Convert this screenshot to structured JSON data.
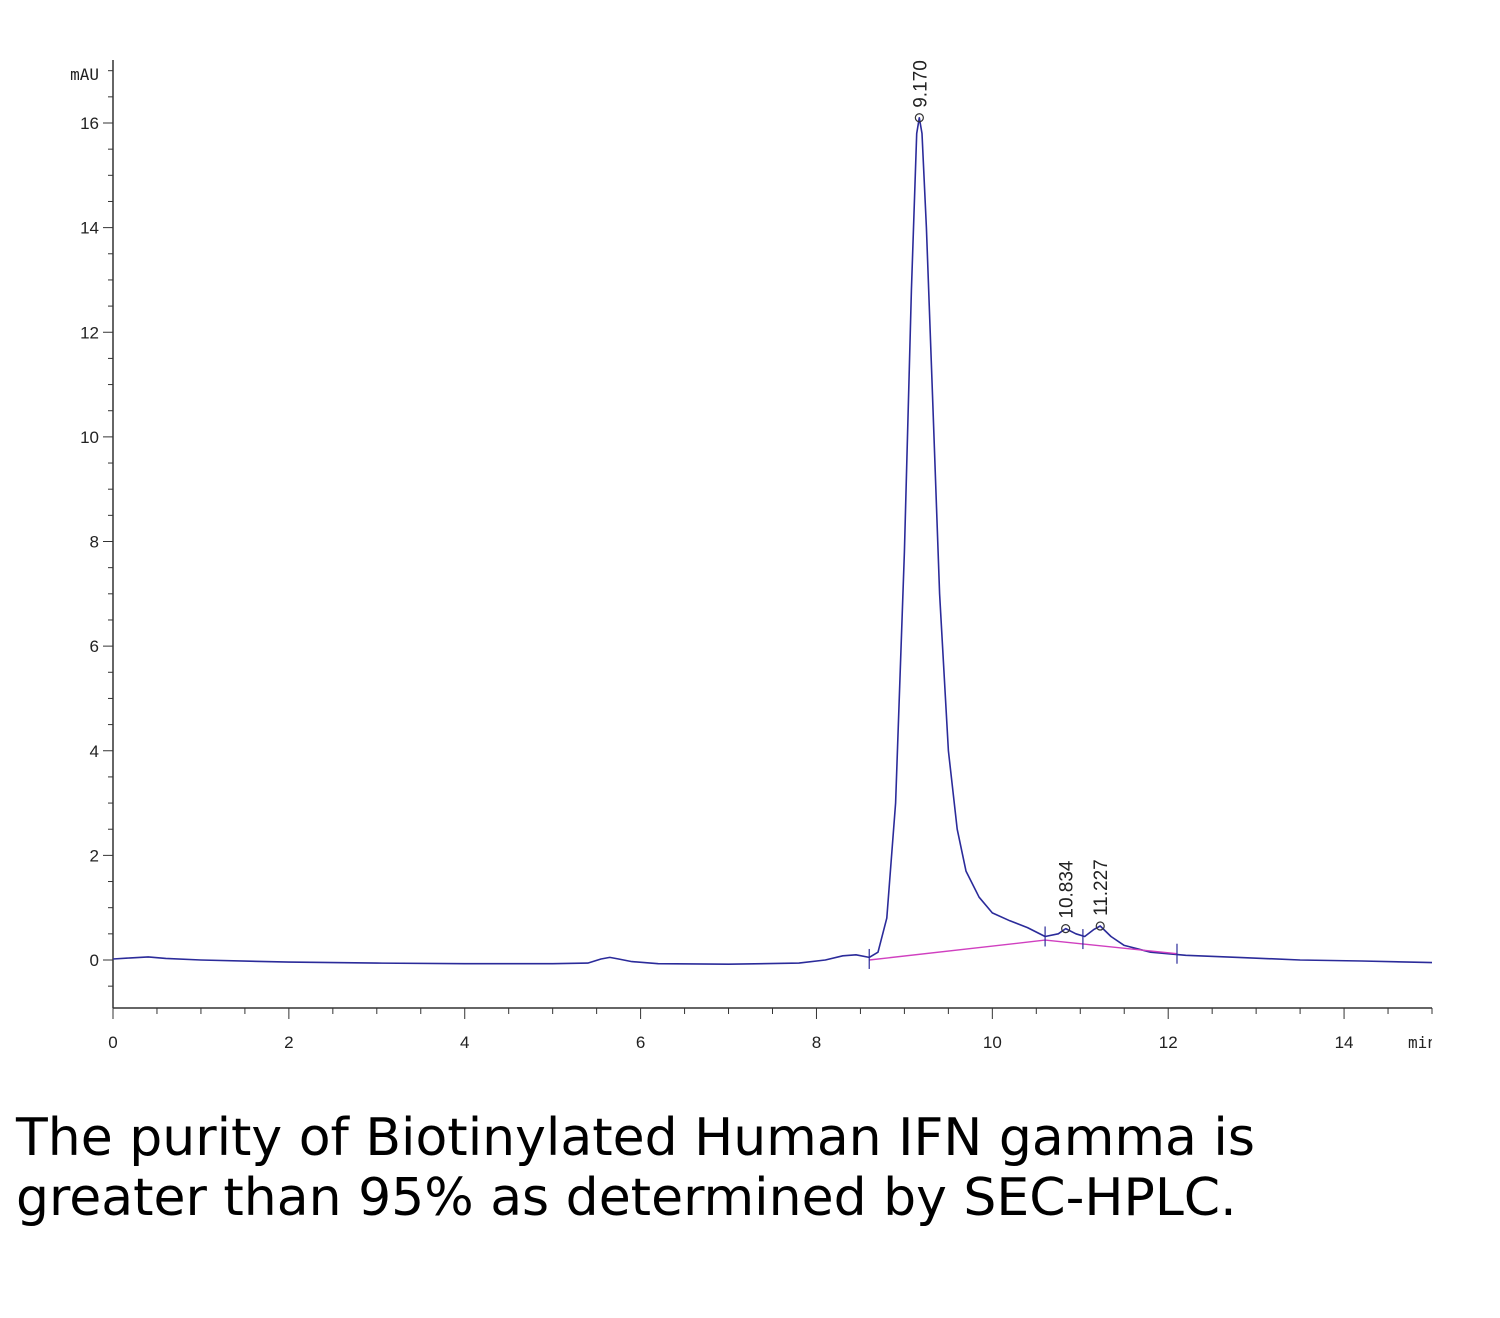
{
  "chart_data": {
    "type": "line",
    "title": "",
    "xlabel": "",
    "ylabel": "",
    "x_unit": "min",
    "y_unit": "mAU",
    "xlim": [
      0,
      15
    ],
    "ylim": [
      -0.9,
      17.2
    ],
    "x_ticks": [
      0,
      2,
      4,
      6,
      8,
      10,
      12,
      14
    ],
    "y_ticks": [
      0,
      2,
      4,
      6,
      8,
      10,
      12,
      14,
      16
    ],
    "grid": false,
    "series": [
      {
        "color": "#2b2b9a",
        "x": [
          0,
          0.2,
          0.4,
          0.6,
          1,
          2,
          3,
          4,
          5,
          5.4,
          5.55,
          5.65,
          5.75,
          5.9,
          6.2,
          7,
          7.8,
          8.1,
          8.3,
          8.45,
          8.6,
          8.7,
          8.8,
          8.9,
          9.0,
          9.08,
          9.14,
          9.17,
          9.2,
          9.25,
          9.32,
          9.4,
          9.5,
          9.6,
          9.7,
          9.85,
          10.0,
          10.2,
          10.4,
          10.6,
          10.75,
          10.834,
          10.95,
          11.05,
          11.15,
          11.227,
          11.35,
          11.5,
          11.8,
          12.2,
          12.8,
          13.5,
          14.2,
          15.0
        ],
        "y": [
          0.02,
          0.04,
          0.06,
          0.03,
          0.0,
          -0.04,
          -0.06,
          -0.07,
          -0.07,
          -0.06,
          0.02,
          0.05,
          0.02,
          -0.03,
          -0.07,
          -0.08,
          -0.06,
          0.0,
          0.08,
          0.1,
          0.05,
          0.15,
          0.8,
          3.0,
          7.8,
          12.8,
          15.8,
          16.1,
          15.8,
          14.0,
          10.8,
          7.0,
          4.0,
          2.5,
          1.7,
          1.2,
          0.9,
          0.75,
          0.62,
          0.45,
          0.5,
          0.6,
          0.5,
          0.45,
          0.58,
          0.65,
          0.45,
          0.28,
          0.15,
          0.09,
          0.05,
          0.0,
          -0.02,
          -0.05
        ]
      },
      {
        "color": "#d040c0",
        "x": [
          8.6,
          10.6,
          12.1
        ],
        "y": [
          0.0,
          0.38,
          0.12
        ]
      }
    ],
    "annotations": [
      {
        "label": "9.170",
        "x": 9.17,
        "y": 16.1
      },
      {
        "label": "10.834",
        "x": 10.834,
        "y": 0.6
      },
      {
        "label": "11.227",
        "x": 11.227,
        "y": 0.65
      }
    ]
  },
  "caption": "The purity of Biotinylated Human IFN gamma is greater than 95% as determined by SEC-HPLC."
}
